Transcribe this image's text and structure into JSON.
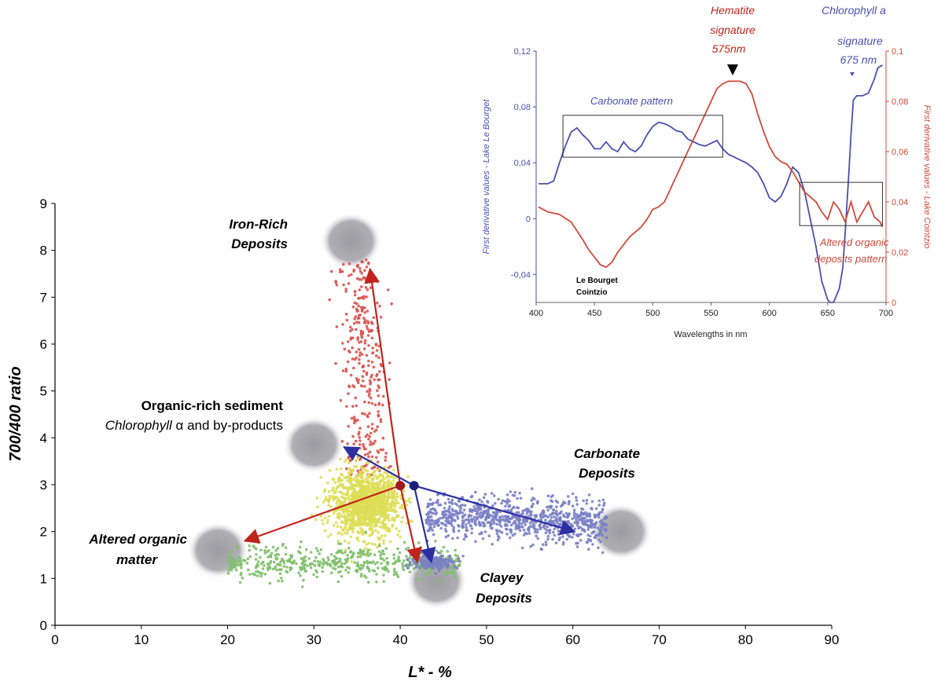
{
  "chart_data": [
    {
      "type": "scatter",
      "xlabel": "L* - %",
      "ylabel": "700/400 ratio",
      "xlim": [
        0,
        90
      ],
      "ylim": [
        0,
        9
      ],
      "xticks": [
        "0",
        "10",
        "20",
        "30",
        "40",
        "50",
        "60",
        "70",
        "80",
        "90"
      ],
      "yticks": [
        "0",
        "1",
        "2",
        "3",
        "4",
        "5",
        "6",
        "7",
        "8",
        "9"
      ],
      "colors": {
        "red": "#d9534f",
        "yellow": "#dede57",
        "green": "#7fbf6a",
        "blue": "#7b7fc4",
        "arrow_red": "#c0241c",
        "arrow_blue": "#2b2fa0",
        "dot_red": "#a01818",
        "dot_blue": "#1c1f7a",
        "gray_blob": "#a6a6aa"
      },
      "clusters": [
        {
          "name": "iron",
          "color": "red",
          "center": [
            37.5,
            5.2
          ],
          "spread": [
            1.5,
            1.3
          ],
          "count": 330
        },
        {
          "name": "organic",
          "color": "yellow",
          "center": [
            36,
            2.6
          ],
          "spread": [
            3.3,
            0.55
          ],
          "count": 1300
        },
        {
          "name": "altered",
          "color": "green",
          "center": [
            32,
            1.35
          ],
          "spread": [
            7,
            0.22
          ],
          "count": 520
        },
        {
          "name": "carbonate",
          "color": "blue",
          "center": [
            56,
            2.2
          ],
          "spread": [
            5.5,
            0.28
          ],
          "count": 850
        },
        {
          "name": "clay",
          "color": "blue",
          "center": [
            44,
            1.35
          ],
          "spread": [
            2.2,
            0.12
          ],
          "count": 220
        }
      ],
      "origin_points": [
        {
          "x": 40.0,
          "y": 2.98,
          "color": "dot_red"
        },
        {
          "x": 41.6,
          "y": 2.98,
          "color": "dot_blue"
        }
      ],
      "arrows": [
        {
          "from": [
            40.0,
            2.98
          ],
          "to": [
            36.5,
            7.6
          ],
          "color": "arrow_red"
        },
        {
          "from": [
            40.0,
            2.98
          ],
          "to": [
            22.0,
            1.8
          ],
          "color": "arrow_red"
        },
        {
          "from": [
            40.0,
            2.98
          ],
          "to": [
            42.0,
            1.35
          ],
          "color": "arrow_red"
        },
        {
          "from": [
            41.6,
            2.98
          ],
          "to": [
            33.5,
            3.8
          ],
          "color": "arrow_blue"
        },
        {
          "from": [
            41.6,
            2.98
          ],
          "to": [
            60.2,
            2.0
          ],
          "color": "arrow_blue"
        },
        {
          "from": [
            41.6,
            2.98
          ],
          "to": [
            43.6,
            1.35
          ],
          "color": "arrow_blue"
        }
      ],
      "blobs": [
        {
          "label_key": "iron",
          "x": 34.3,
          "y": 8.2
        },
        {
          "label_key": "organic",
          "x": 30.0,
          "y": 3.85
        },
        {
          "label_key": "carbonate",
          "x": 65.6,
          "y": 2.0
        },
        {
          "label_key": "altered",
          "x": 18.9,
          "y": 1.6
        },
        {
          "label_key": "clay",
          "x": 44.2,
          "y": 0.95
        }
      ],
      "annotations": {
        "iron": [
          "Iron-Rich",
          "Deposits"
        ],
        "organic_title": "Organic-rich sediment",
        "organic_sub_italic": "Chlorophyll",
        "organic_sub_rest": " α and by-products",
        "carbonate": [
          "Carbonate",
          "Deposits"
        ],
        "altered": [
          "Altered organic",
          "matter"
        ],
        "clay": [
          "Clayey",
          "Deposits"
        ]
      }
    },
    {
      "type": "line",
      "xlabel": "Wavelengths in nm",
      "ylabel_left": "First derivative values - Lake Le Bourget",
      "ylabel_right": "First derivative values - Lake Cointzio",
      "xlim": [
        400,
        700
      ],
      "ylim_left": [
        -0.06,
        0.12
      ],
      "ylim_right": [
        0,
        0.1
      ],
      "xticks": [
        "400",
        "450",
        "500",
        "550",
        "600",
        "650",
        "700"
      ],
      "yticks_left": [
        "-0,04",
        "0",
        "0,04",
        "0,08",
        "0,12"
      ],
      "yticks_right": [
        "0",
        "0,02",
        "0,04",
        "0,06",
        "0,08",
        "0,1"
      ],
      "series": [
        {
          "name": "Le Bourget",
          "axis": "left",
          "color": "#4a4fb0",
          "x": [
            402,
            410,
            415,
            420,
            425,
            430,
            435,
            440,
            445,
            450,
            455,
            460,
            465,
            470,
            475,
            480,
            485,
            490,
            495,
            500,
            505,
            510,
            515,
            520,
            525,
            530,
            535,
            540,
            545,
            550,
            555,
            560,
            565,
            570,
            575,
            580,
            585,
            590,
            595,
            600,
            605,
            610,
            615,
            620,
            625,
            630,
            635,
            640,
            645,
            650,
            652,
            655,
            660,
            663,
            665,
            668,
            670,
            672,
            675,
            680,
            685,
            690,
            693,
            697
          ],
          "y": [
            0.025,
            0.025,
            0.027,
            0.04,
            0.052,
            0.062,
            0.065,
            0.06,
            0.056,
            0.05,
            0.05,
            0.055,
            0.05,
            0.048,
            0.055,
            0.05,
            0.048,
            0.052,
            0.06,
            0.066,
            0.069,
            0.068,
            0.066,
            0.063,
            0.062,
            0.057,
            0.055,
            0.053,
            0.052,
            0.054,
            0.056,
            0.05,
            0.046,
            0.044,
            0.042,
            0.04,
            0.037,
            0.033,
            0.025,
            0.015,
            0.012,
            0.016,
            0.025,
            0.037,
            0.033,
            0.02,
            0.0,
            -0.02,
            -0.045,
            -0.058,
            -0.06,
            -0.06,
            -0.05,
            -0.035,
            -0.01,
            0.03,
            0.06,
            0.085,
            0.088,
            0.088,
            0.09,
            0.1,
            0.108,
            0.11
          ]
        },
        {
          "name": "Cointzio",
          "axis": "right",
          "color": "#d04a3a",
          "x": [
            402,
            410,
            420,
            430,
            440,
            445,
            450,
            455,
            460,
            465,
            470,
            475,
            480,
            485,
            490,
            495,
            500,
            505,
            510,
            515,
            520,
            525,
            530,
            535,
            540,
            545,
            550,
            555,
            560,
            565,
            570,
            575,
            580,
            585,
            590,
            595,
            600,
            605,
            610,
            615,
            620,
            625,
            630,
            635,
            640,
            645,
            650,
            655,
            660,
            665,
            670,
            675,
            680,
            685,
            690,
            695,
            697
          ],
          "y": [
            0.038,
            0.036,
            0.035,
            0.032,
            0.025,
            0.021,
            0.018,
            0.015,
            0.014,
            0.016,
            0.02,
            0.023,
            0.026,
            0.028,
            0.03,
            0.033,
            0.037,
            0.038,
            0.04,
            0.045,
            0.05,
            0.055,
            0.06,
            0.065,
            0.07,
            0.075,
            0.08,
            0.085,
            0.087,
            0.088,
            0.088,
            0.088,
            0.087,
            0.083,
            0.075,
            0.068,
            0.062,
            0.058,
            0.056,
            0.055,
            0.052,
            0.048,
            0.044,
            0.042,
            0.04,
            0.036,
            0.033,
            0.04,
            0.037,
            0.032,
            0.04,
            0.032,
            0.036,
            0.04,
            0.034,
            0.032,
            0.03
          ]
        }
      ],
      "boxes": [
        {
          "x": [
            423,
            560
          ],
          "yl": [
            0.044,
            0.074
          ],
          "label": "Carbonate pattern",
          "label_color": "#4a4fb0"
        },
        {
          "x": [
            626,
            697
          ],
          "yl": [
            -0.005,
            0.026
          ],
          "label": [
            "Altered organic",
            "deposits pattern"
          ],
          "label_color": "#d04a3a"
        }
      ],
      "annotations": {
        "hematite": [
          "Hematite",
          "signature",
          "575nm"
        ],
        "chlorophyll": [
          "Chlorophyll a",
          "signature",
          "675 nm"
        ],
        "legend": [
          "Le Bourget",
          "Cointzio"
        ]
      }
    }
  ]
}
